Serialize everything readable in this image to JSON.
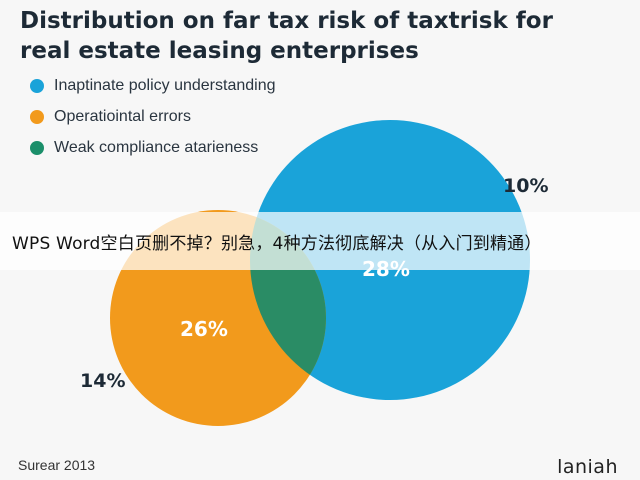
{
  "title_line1": "Distribution on far tax risk of taxtrisk for",
  "title_line2": "real estate leasing enterprises",
  "legend": [
    {
      "label": "Inaptinate policy understanding",
      "color": "#1aa3d9"
    },
    {
      "label": "Operatiointal errors",
      "color": "#f29a1c"
    },
    {
      "label": "Weak compliance atarieness",
      "color": "#1b8f6a"
    }
  ],
  "venn": {
    "blue_value": "28%",
    "blue_outer_value": "10%",
    "orange_value": "26%",
    "orange_outer_value": "14%",
    "colors": {
      "blue": "#1aa3d9",
      "orange": "#f29a1c",
      "overlap": "#2a8c65"
    }
  },
  "banner_text": "WPS Word空白页删不掉？别急，4种方法彻底解决（从入门到精通）",
  "source": "Surear 2013",
  "logo": "laniah"
}
